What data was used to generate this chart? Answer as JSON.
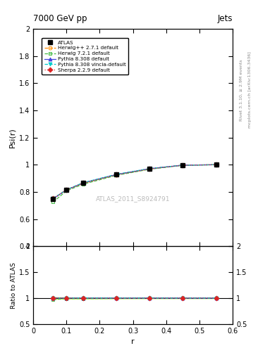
{
  "title_left": "7000 GeV pp",
  "title_right": "Jets",
  "ylabel_main": "Psi(r)",
  "ylabel_ratio": "Ratio to ATLAS",
  "xlabel": "r",
  "right_label_top": "Rivet 3.1.10, ≥ 2.9M events",
  "right_label_bottom": "mcplots.cern.ch [arXiv:1306.3436]",
  "watermark": "ATLAS_2011_S8924791",
  "ylim_main": [
    0.4,
    2.0
  ],
  "ylim_ratio": [
    0.5,
    2.0
  ],
  "xlim": [
    0.0,
    0.6
  ],
  "r_values": [
    0.06,
    0.1,
    0.15,
    0.25,
    0.35,
    0.45,
    0.55
  ],
  "atlas_data": [
    0.748,
    0.815,
    0.865,
    0.928,
    0.97,
    0.997,
    1.0
  ],
  "atlas_errors": [
    0.012,
    0.01,
    0.008,
    0.006,
    0.004,
    0.003,
    0.002
  ],
  "series": [
    {
      "label": "Herwig++ 2.7.1 default",
      "color": "#ff8c00",
      "linestyle": "--",
      "marker": "o",
      "markerfill": "none",
      "data": [
        0.748,
        0.815,
        0.863,
        0.926,
        0.969,
        0.997,
        1.0
      ]
    },
    {
      "label": "Herwig 7.2.1 default",
      "color": "#44bb44",
      "linestyle": "--",
      "marker": "s",
      "markerfill": "none",
      "data": [
        0.726,
        0.808,
        0.857,
        0.922,
        0.967,
        0.996,
        1.0
      ]
    },
    {
      "label": "Pythia 8.308 default",
      "color": "#4444dd",
      "linestyle": "-",
      "marker": "^",
      "markerfill": "#4444dd",
      "data": [
        0.75,
        0.815,
        0.866,
        0.928,
        0.971,
        0.997,
        1.0
      ]
    },
    {
      "label": "Pythia 8.308 vincia-default",
      "color": "#00cccc",
      "linestyle": "--",
      "marker": "v",
      "markerfill": "#00cccc",
      "data": [
        0.752,
        0.817,
        0.868,
        0.93,
        0.972,
        0.997,
        1.0
      ]
    },
    {
      "label": "Sherpa 2.2.9 default",
      "color": "#dd2222",
      "linestyle": ":",
      "marker": "D",
      "markerfill": "#dd2222",
      "data": [
        0.752,
        0.816,
        0.865,
        0.927,
        0.97,
        0.997,
        1.0
      ]
    }
  ],
  "atlas_color": "#000000",
  "atlas_marker": "s",
  "atlas_markersize": 5,
  "ratio_band_color": "#ccff44",
  "ratio_band_alpha": 0.7,
  "yticks_main": [
    0.4,
    0.6,
    0.8,
    1.0,
    1.2,
    1.4,
    1.6,
    1.8,
    2.0
  ],
  "yticks_ratio": [
    0.5,
    1.0,
    1.5,
    2.0
  ],
  "xticks": [
    0.0,
    0.1,
    0.2,
    0.3,
    0.4,
    0.5,
    0.6
  ]
}
